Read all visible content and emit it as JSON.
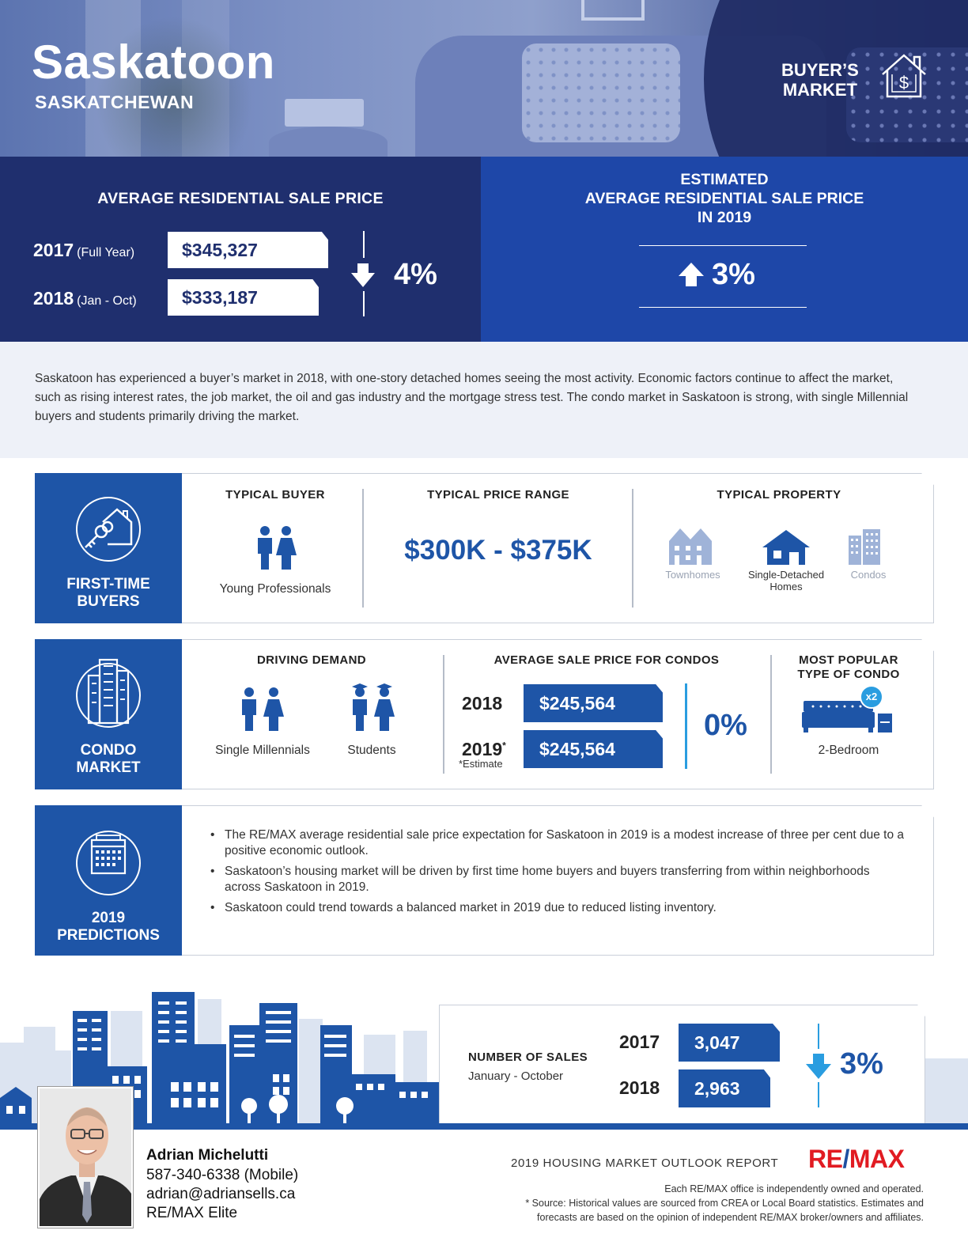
{
  "header": {
    "city": "Saskatoon",
    "province": "SASKATCHEWAN",
    "market_line1": "BUYER’S",
    "market_line2": "MARKET",
    "market_icon": "house-dollar-icon"
  },
  "avg_price": {
    "title": "AVERAGE RESIDENTIAL SALE PRICE",
    "rows": [
      {
        "year": "2017",
        "period": "(Full Year)",
        "value": "$345,327"
      },
      {
        "year": "2018",
        "period": "(Jan - Oct)",
        "value": "$333,187"
      }
    ],
    "change": "4%",
    "direction": "down"
  },
  "estimate": {
    "line1": "ESTIMATED",
    "line2": "AVERAGE RESIDENTIAL SALE PRICE",
    "line3": "IN 2019",
    "change": "3%",
    "direction": "up"
  },
  "intro": "Saskatoon has experienced a buyer’s market in 2018, with one-story detached homes seeing the most activity. Economic factors continue to affect the market, such as rising interest rates, the job market, the oil and gas industry and the mortgage stress test. The condo market in Saskatoon is strong, with single Millennial buyers and students primarily driving the market.",
  "first_time": {
    "side_line1": "FIRST-TIME",
    "side_line2": "BUYERS",
    "typical_buyer_title": "TYPICAL BUYER",
    "typical_buyer": "Young Professionals",
    "price_range_title": "TYPICAL PRICE RANGE",
    "price_range": "$300K - $375K",
    "property_title": "TYPICAL PROPERTY",
    "properties": [
      {
        "label": "Townhomes",
        "active": false
      },
      {
        "label_line1": "Single-Detached",
        "label_line2": "Homes",
        "active": true
      },
      {
        "label": "Condos",
        "active": false
      }
    ]
  },
  "condo": {
    "side_line1": "CONDO",
    "side_line2": "MARKET",
    "demand_title": "DRIVING DEMAND",
    "demand": [
      "Single Millennials",
      "Students"
    ],
    "avg_title": "AVERAGE SALE PRICE FOR CONDOS",
    "rows": [
      {
        "year": "2018",
        "value": "$245,564"
      },
      {
        "year": "2019",
        "mark": "*",
        "value": "$245,564"
      }
    ],
    "estimate_note": "*Estimate",
    "change": "0%",
    "popular_title_line1": "MOST POPULAR",
    "popular_title_line2": "TYPE OF CONDO",
    "popular_badge": "x2",
    "popular": "2-Bedroom"
  },
  "predictions": {
    "side_line1": "2019",
    "side_line2": "PREDICTIONS",
    "bullets": [
      "The RE/MAX average residential sale price expectation for Saskatoon in 2019 is a modest increase of three per cent due to a positive economic outlook.",
      "Saskatoon’s housing market will be driven by first time home buyers and buyers transferring from within neighborhoods across Saskatoon in 2019.",
      "Saskatoon could trend towards a balanced market in 2019 due to reduced listing inventory."
    ]
  },
  "sales": {
    "label": "NUMBER OF SALES",
    "period": "January - October",
    "rows": [
      {
        "year": "2017",
        "value": "3,047"
      },
      {
        "year": "2018",
        "value": "2,963"
      }
    ],
    "change": "3%",
    "direction": "down"
  },
  "agent": {
    "name": "Adrian Michelutti",
    "phone": "587-340-6338 (Mobile)",
    "email": "adrian@adriansells.ca",
    "office": "RE/MAX Elite"
  },
  "footer": {
    "report_title": "2019 HOUSING MARKET OUTLOOK REPORT",
    "brand_left": "RE",
    "brand_slash": "/",
    "brand_right": "MAX",
    "fine1": "Each RE/MAX office is independently owned and operated.",
    "fine2": "* Source: Historical values are sourced from CREA or Local Board statistics. Estimates and",
    "fine3": "forecasts are based on the opinion of independent RE/MAX broker/owners and affiliates."
  },
  "colors": {
    "navy": "#1f2f6e",
    "royal": "#1e47a8",
    "brand_blue": "#1e55a7",
    "accent_cyan": "#2a9de0",
    "remax_red": "#e11b22"
  }
}
